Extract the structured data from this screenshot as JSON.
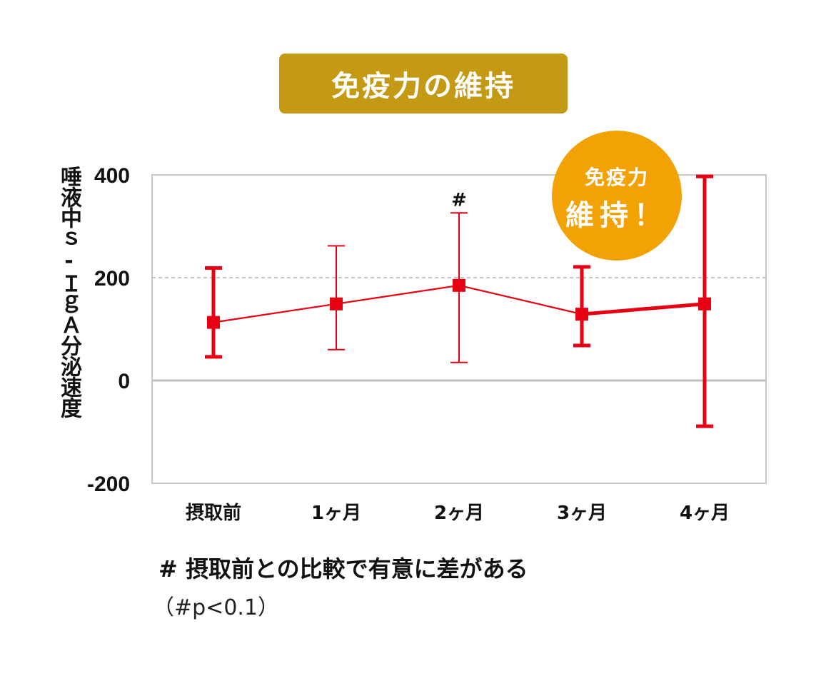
{
  "title": "免疫力の維持",
  "badge": {
    "line1": "免疫力",
    "line2": "維持！"
  },
  "footnote": {
    "line1": "# 摂取前との比較で有意に差がある",
    "line2": "（#p<0.1）"
  },
  "colors": {
    "title_bg": "#C49A14",
    "badge_bg": "#F3A205",
    "series": "#E60012"
  },
  "chart_data": {
    "type": "line",
    "title": "免疫力の維持",
    "ylabel": "唾液中ｓ-ＩｇＡ分泌速度",
    "xlabel": "",
    "categories": [
      "摂取前",
      "1ヶ月",
      "2ヶ月",
      "3ヶ月",
      "4ヶ月"
    ],
    "series": [
      {
        "name": "唾液中ｓ-ＩｇＡ分泌速度",
        "values": [
          113,
          149,
          185,
          129,
          149
        ],
        "error_upper": [
          219,
          262,
          326,
          221,
          397
        ],
        "error_lower": [
          46,
          60,
          35,
          68,
          -89
        ]
      }
    ],
    "annotations": [
      {
        "category": "2ヶ月",
        "text": "#"
      }
    ],
    "ylim": [
      -200,
      400
    ],
    "yticks": [
      400,
      200,
      0,
      -200
    ],
    "ytick_labels": [
      "400",
      "200",
      "0",
      "-200"
    ],
    "grid": "dashed line at 200, solid line at 0",
    "legend": "none"
  }
}
